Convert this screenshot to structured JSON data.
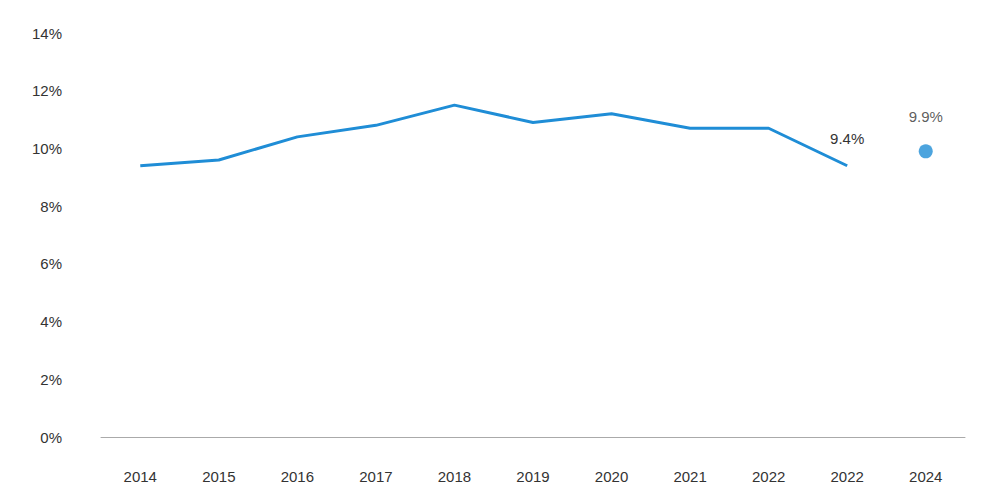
{
  "chart_data": {
    "type": "line",
    "categories": [
      "2014",
      "2015",
      "2016",
      "2017",
      "2018",
      "2019",
      "2020",
      "2021",
      "2022",
      "2022",
      "2024"
    ],
    "series": [
      {
        "type": "line",
        "color": "#1f8dd6",
        "marker": "none",
        "values": [
          9.4,
          9.6,
          10.4,
          10.8,
          11.5,
          10.9,
          11.2,
          10.7,
          10.7,
          9.4,
          null
        ],
        "value_labels": [
          null,
          null,
          null,
          null,
          null,
          null,
          null,
          null,
          null,
          "9.4%",
          null
        ]
      },
      {
        "type": "scatter",
        "color": "#1f8dd6",
        "marker": "circle",
        "values": [
          null,
          null,
          null,
          null,
          null,
          null,
          null,
          null,
          null,
          null,
          9.9
        ],
        "value_labels": [
          null,
          null,
          null,
          null,
          null,
          null,
          null,
          null,
          null,
          null,
          "9.9%"
        ]
      }
    ],
    "ylim": [
      0,
      14
    ],
    "yticks": [
      {
        "value": 0,
        "label": "0%"
      },
      {
        "value": 2,
        "label": "2%"
      },
      {
        "value": 4,
        "label": "4%"
      },
      {
        "value": 6,
        "label": "6%"
      },
      {
        "value": 8,
        "label": "8%"
      },
      {
        "value": 10,
        "label": "10%"
      },
      {
        "value": 12,
        "label": "12%"
      },
      {
        "value": 14,
        "label": "14%"
      }
    ],
    "grid": false,
    "data_labels": true
  }
}
